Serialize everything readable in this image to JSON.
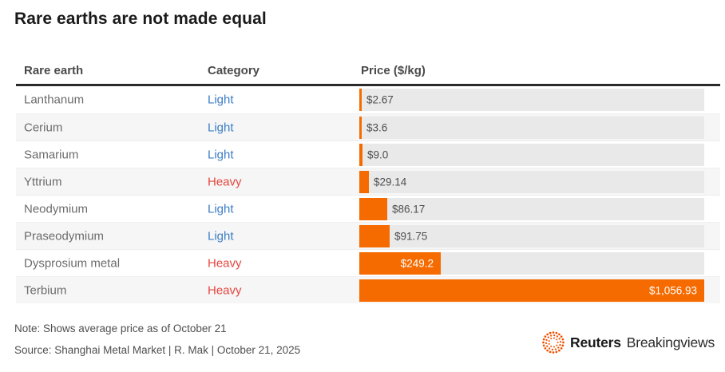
{
  "title": "Rare earths are not made equal",
  "table": {
    "headers": {
      "name": "Rare earth",
      "category": "Category",
      "price": "Price ($/kg)"
    }
  },
  "note": "Note: Shows average price as of October 21",
  "source": "Source: Shanghai Metal Market | R. Mak | October 21, 2025",
  "logo": {
    "brand": "Reuters",
    "unit": "Breakingviews"
  },
  "colors": {
    "bar_orange": "#f66b00",
    "light_blue": "#3c7dc4",
    "heavy_red": "#e4463e",
    "track_gray": "#e9e9e9",
    "logo_orange": "#f05000"
  },
  "chart_data": {
    "type": "bar",
    "orientation": "horizontal",
    "title": "Rare earths are not made equal",
    "xlabel": "Price ($/kg)",
    "xlim": [
      0,
      1056.93
    ],
    "grid": false,
    "categories": [
      "Lanthanum",
      "Cerium",
      "Samarium",
      "Yttrium",
      "Neodymium",
      "Praseodymium",
      "Dysprosium metal",
      "Terbium"
    ],
    "values": [
      2.67,
      3.6,
      9.0,
      29.14,
      86.17,
      91.75,
      249.2,
      1056.93
    ],
    "group_labels": [
      "Light",
      "Light",
      "Light",
      "Heavy",
      "Light",
      "Light",
      "Heavy",
      "Heavy"
    ],
    "value_labels": [
      "$2.67",
      "$3.6",
      "$9.0",
      "$29.14",
      "$86.17",
      "$91.75",
      "$249.2",
      "$1,056.93"
    ]
  }
}
